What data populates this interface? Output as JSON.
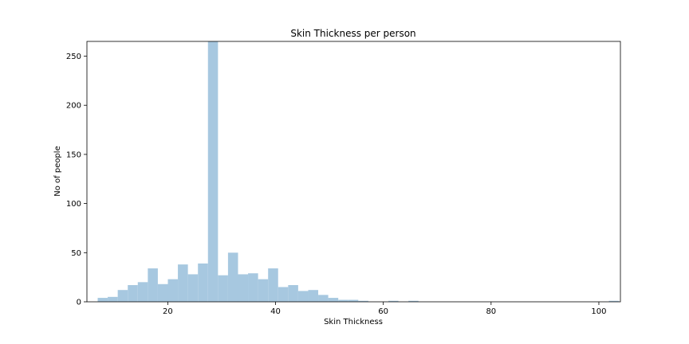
{
  "chart_data": {
    "type": "bar",
    "title": "Skin Thickness per person",
    "xlabel": "Skin Thickness",
    "ylabel": "No of people",
    "xlim": [
      5,
      104
    ],
    "ylim": [
      0,
      265
    ],
    "xticks": [
      20,
      40,
      60,
      80,
      100
    ],
    "yticks": [
      0,
      50,
      100,
      150,
      200,
      250
    ],
    "grid": false,
    "bar_color": "#a7c8e0",
    "bin_start": 7,
    "bin_width": 1.86,
    "values": [
      4,
      5,
      12,
      17,
      20,
      34,
      18,
      23,
      38,
      28,
      39,
      265,
      27,
      50,
      28,
      29,
      23,
      34,
      15,
      17,
      11,
      12,
      7,
      4,
      2,
      2,
      1,
      0,
      0,
      1,
      0,
      1,
      0,
      0,
      0,
      0,
      0,
      0,
      0,
      0,
      0,
      0,
      0,
      0,
      0,
      0,
      0,
      0,
      0,
      0,
      0,
      1
    ]
  }
}
